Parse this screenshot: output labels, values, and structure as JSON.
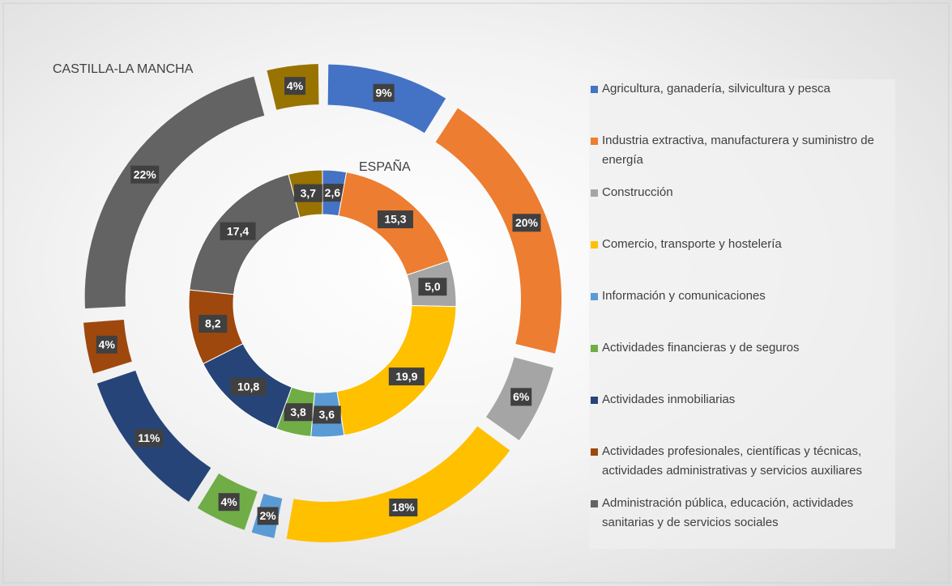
{
  "chart_data": {
    "type": "doughnut",
    "categories": [
      "Agricultura, ganadería, silvicultura y pesca",
      "Industria extractiva, manufacturera y suministro de energía",
      "Construcción",
      "Comercio, transporte y hostelería",
      "Información y comunicaciones",
      "Actividades financieras y de seguros",
      "Actividades inmobiliarias",
      "Actividades profesionales, científicas y técnicas, actividades administrativas y servicios auxiliares",
      "Administración pública, educación, actividades sanitarias y de servicios sociales",
      null
    ],
    "colors": [
      "#4472c4",
      "#ed7d31",
      "#a5a5a5",
      "#ffc000",
      "#5b9bd5",
      "#70ad47",
      "#264478",
      "#9e480e",
      "#636363",
      "#997300"
    ],
    "series": [
      {
        "name": "ESPAÑA",
        "values": [
          2.6,
          15.3,
          5.0,
          19.9,
          3.6,
          3.8,
          10.8,
          8.2,
          17.4,
          3.7
        ],
        "value_labels": [
          "2,6",
          "15,3",
          "5,0",
          "19,9",
          "3,6",
          "3,8",
          "10,8",
          "8,2",
          "17,4",
          "3,7"
        ]
      },
      {
        "name": "CASTILLA-LA MANCHA",
        "values": [
          9,
          20,
          6,
          18,
          2,
          4,
          11,
          4,
          22,
          4
        ],
        "value_labels": [
          "9%",
          "20%",
          "6%",
          "18%",
          "2%",
          "4%",
          "11%",
          "4%",
          "22%",
          "4%"
        ]
      }
    ]
  }
}
